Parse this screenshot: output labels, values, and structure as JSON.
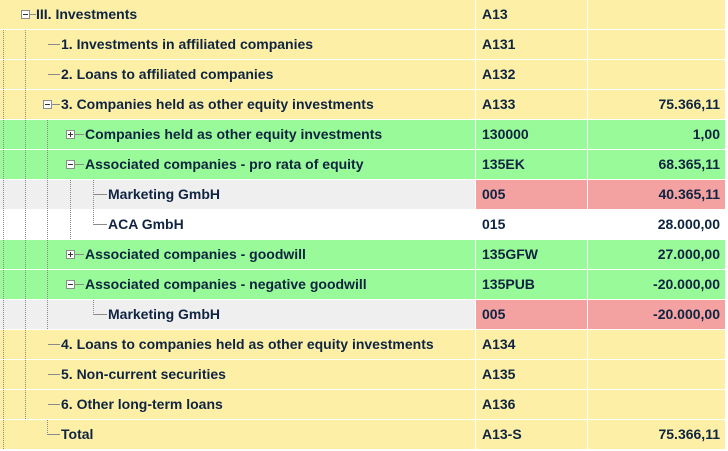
{
  "rows": [
    {
      "label": "III. Investments",
      "code": "A13",
      "amount": ""
    },
    {
      "label": "1. Investments in affiliated companies",
      "code": "A131",
      "amount": ""
    },
    {
      "label": "2. Loans to affiliated companies",
      "code": "A132",
      "amount": ""
    },
    {
      "label": "3. Companies held as other equity investments",
      "code": "A133",
      "amount": "75.366,11"
    },
    {
      "label": "Companies held as other equity investments",
      "code": "130000",
      "amount": "1,00"
    },
    {
      "label": "Associated companies - pro rata of equity",
      "code": "135EK",
      "amount": "68.365,11"
    },
    {
      "label": "Marketing GmbH",
      "code": "005",
      "amount": "40.365,11"
    },
    {
      "label": "ACA GmbH",
      "code": "015",
      "amount": "28.000,00"
    },
    {
      "label": "Associated companies - goodwill",
      "code": "135GFW",
      "amount": "27.000,00"
    },
    {
      "label": "Associated companies - negative goodwill",
      "code": "135PUB",
      "amount": "-20.000,00"
    },
    {
      "label": "Marketing GmbH",
      "code": "005",
      "amount": "-20.000,00"
    },
    {
      "label": "4. Loans to companies held as other equity investments",
      "code": "A134",
      "amount": ""
    },
    {
      "label": "5. Non-current securities",
      "code": "A135",
      "amount": ""
    },
    {
      "label": "6. Other long-term loans",
      "code": "A136",
      "amount": ""
    },
    {
      "label": "Total",
      "code": "A13-S",
      "amount": "75.366,11"
    }
  ],
  "colors": {
    "yellow": "#fdf0a6",
    "green": "#98fa98",
    "grey": "#efefef",
    "white": "#ffffff",
    "highlight_red": "#f3a1a1",
    "text": "#0f2440"
  },
  "icons": {
    "collapse": "minus-box-icon",
    "expand": "plus-box-icon"
  }
}
